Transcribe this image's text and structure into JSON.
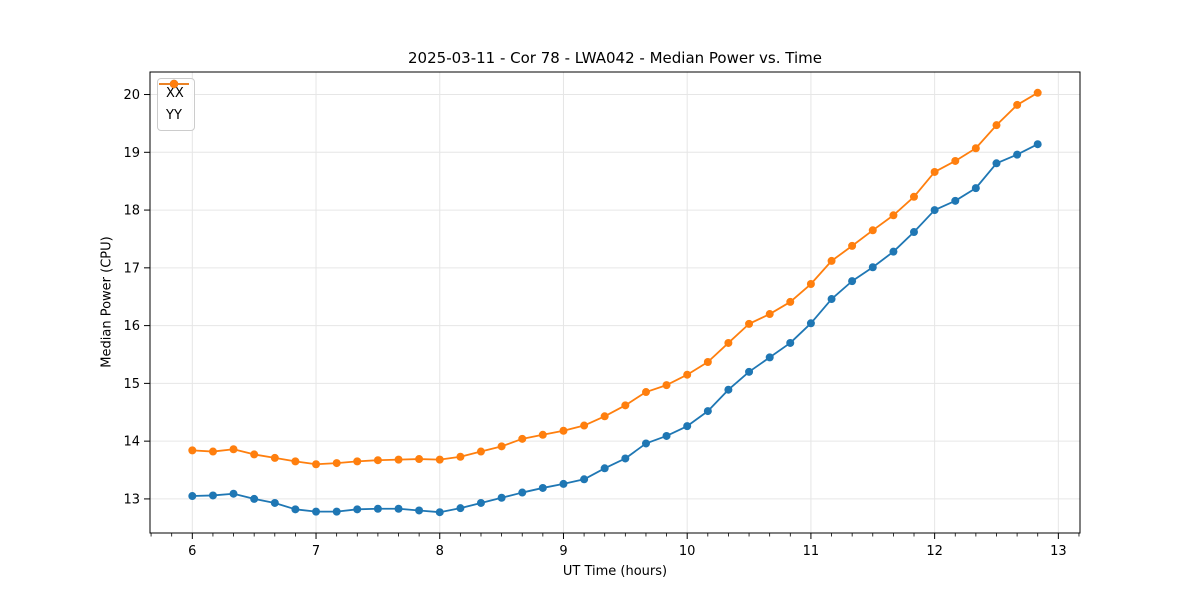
{
  "chart_data": {
    "type": "line",
    "title": "2025-03-11 - Cor 78 - LWA042 - Median Power vs. Time",
    "xlabel": "UT Time (hours)",
    "ylabel": "Median Power (CPU)",
    "x": [
      6,
      6.167,
      6.333,
      6.5,
      6.667,
      6.833,
      7,
      7.167,
      7.333,
      7.5,
      7.667,
      7.833,
      8,
      8.167,
      8.333,
      8.5,
      8.667,
      8.833,
      9,
      9.167,
      9.333,
      9.5,
      9.667,
      9.833,
      10,
      10.167,
      10.333,
      10.5,
      10.667,
      10.833,
      11,
      11.167,
      11.333,
      11.5,
      11.667,
      11.833,
      12,
      12.167,
      12.333,
      12.5,
      12.667,
      12.833
    ],
    "series": [
      {
        "name": "XX",
        "color": "#1f77b4",
        "values": [
          13.05,
          13.06,
          13.09,
          13.0,
          12.93,
          12.82,
          12.78,
          12.78,
          12.82,
          12.83,
          12.83,
          12.8,
          12.77,
          12.84,
          12.93,
          13.02,
          13.11,
          13.19,
          13.26,
          13.34,
          13.53,
          13.7,
          13.96,
          14.09,
          14.26,
          14.52,
          14.89,
          15.2,
          15.45,
          15.7,
          16.04,
          16.46,
          16.77,
          17.01,
          17.28,
          17.62,
          18.0,
          18.16,
          18.38,
          18.81,
          18.96,
          19.14
        ]
      },
      {
        "name": "YY",
        "color": "#ff7f0e",
        "values": [
          13.84,
          13.82,
          13.86,
          13.77,
          13.71,
          13.65,
          13.6,
          13.62,
          13.65,
          13.67,
          13.68,
          13.69,
          13.68,
          13.73,
          13.82,
          13.91,
          14.04,
          14.11,
          14.18,
          14.27,
          14.43,
          14.62,
          14.85,
          14.97,
          15.15,
          15.37,
          15.7,
          16.03,
          16.2,
          16.41,
          16.72,
          17.12,
          17.38,
          17.65,
          17.91,
          18.23,
          18.66,
          18.85,
          19.07,
          19.47,
          19.82,
          20.03
        ]
      }
    ],
    "xlim": [
      5.658,
      13.175
    ],
    "ylim": [
      12.41,
      20.39
    ],
    "xticks": [
      6,
      7,
      8,
      9,
      10,
      11,
      12,
      13
    ],
    "yticks": [
      13,
      14,
      15,
      16,
      17,
      18,
      19,
      20
    ],
    "x_minor_step": 0.1667,
    "grid": true,
    "legend_position": "upper-left",
    "grid_color": "#e6e6e6",
    "axis_color": "#000000",
    "background_color": "#ffffff"
  }
}
